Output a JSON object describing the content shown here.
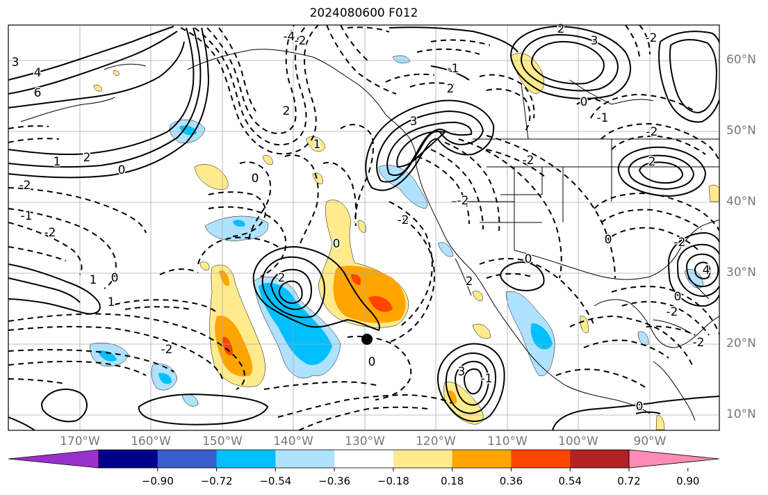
{
  "title": "2024080600 F012",
  "lat_labels": [
    "60°N",
    "50°N",
    "40°N",
    "30°N",
    "20°N",
    "10°N"
  ],
  "lon_labels": [
    "170°W",
    "160°W",
    "150°W",
    "140°W",
    "130°W",
    "120°W",
    "110°W",
    "100°W",
    "90°W"
  ],
  "colorbar": {
    "tick_labels": [
      "−0.90",
      "−0.72",
      "−0.54",
      "−0.36",
      "−0.18",
      "0.18",
      "0.36",
      "0.54",
      "0.72",
      "0.90"
    ],
    "colors": [
      "#9932cc",
      "#00008b",
      "#3a5fcd",
      "#00bfff",
      "#b0e2ff",
      "#ffffff",
      "#ffeb8c",
      "#ffa500",
      "#ff4500",
      "#b22222",
      "#ff8cb4"
    ]
  },
  "contour_labels": [
    {
      "text": "3"
    },
    {
      "text": "4"
    },
    {
      "text": "6"
    },
    {
      "text": "2"
    },
    {
      "text": "1"
    },
    {
      "text": "0"
    },
    {
      "text": "-2"
    },
    {
      "text": "-1"
    },
    {
      "text": "-2"
    },
    {
      "text": "1"
    },
    {
      "text": "0"
    },
    {
      "text": "2"
    },
    {
      "text": "-2"
    },
    {
      "text": "2"
    },
    {
      "text": "-4"
    },
    {
      "text": "-2"
    },
    {
      "text": "1"
    },
    {
      "text": "0"
    },
    {
      "text": "3"
    },
    {
      "text": "-1"
    },
    {
      "text": "2"
    },
    {
      "text": "-2"
    },
    {
      "text": "0"
    },
    {
      "text": "1"
    },
    {
      "text": "3"
    },
    {
      "text": "-1"
    },
    {
      "text": "0"
    },
    {
      "text": "2"
    },
    {
      "text": "-2"
    },
    {
      "text": "-2"
    },
    {
      "text": "0"
    },
    {
      "text": "-2"
    },
    {
      "text": "0"
    },
    {
      "text": "2"
    },
    {
      "text": "-2"
    },
    {
      "text": "0"
    },
    {
      "text": "-2"
    },
    {
      "text": "4"
    },
    {
      "text": "0"
    },
    {
      "text": "-1"
    },
    {
      "text": "-2"
    },
    {
      "text": "2"
    },
    {
      "text": "-2"
    },
    {
      "text": "3"
    },
    {
      "text": "0"
    }
  ]
}
